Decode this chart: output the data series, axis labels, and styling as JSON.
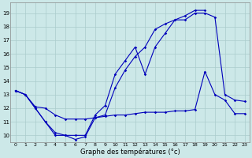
{
  "xlabel": "Graphe des températures (°c)",
  "bg_color": "#cce8e8",
  "grid_color": "#aacccc",
  "line_color": "#0000bb",
  "xlim": [
    -0.5,
    23.5
  ],
  "ylim": [
    9.5,
    19.8
  ],
  "xticks": [
    0,
    1,
    2,
    3,
    4,
    5,
    6,
    7,
    8,
    9,
    10,
    11,
    12,
    13,
    14,
    15,
    16,
    17,
    18,
    19,
    20,
    21,
    22,
    23
  ],
  "yticks": [
    10,
    11,
    12,
    13,
    14,
    15,
    16,
    17,
    18,
    19
  ],
  "series1_x": [
    0,
    1,
    2,
    3,
    4,
    5,
    6,
    7,
    8,
    9,
    10,
    11,
    12,
    13,
    14,
    15,
    16,
    17,
    18,
    19,
    20,
    21,
    22,
    23
  ],
  "series1_y": [
    13.3,
    13.0,
    12.0,
    11.0,
    10.0,
    10.0,
    10.0,
    10.0,
    11.5,
    12.2,
    14.5,
    15.5,
    16.5,
    14.5,
    16.5,
    17.5,
    18.5,
    18.5,
    19.0,
    19.0,
    18.7,
    13.0,
    12.6,
    12.5
  ],
  "series2_x": [
    0,
    1,
    2,
    3,
    4,
    5,
    6,
    7,
    8,
    9,
    10,
    11,
    12,
    13,
    14,
    15,
    16,
    17,
    18,
    19,
    20,
    21,
    22,
    23
  ],
  "series2_y": [
    13.3,
    13.0,
    12.0,
    11.0,
    10.2,
    10.0,
    9.7,
    9.9,
    11.3,
    11.5,
    13.5,
    14.8,
    15.8,
    16.5,
    17.8,
    18.2,
    18.5,
    18.8,
    19.2,
    19.2,
    null,
    null,
    null,
    null
  ],
  "series3_x": [
    0,
    1,
    2,
    3,
    4,
    5,
    6,
    7,
    8,
    9,
    10,
    11,
    12,
    13,
    14,
    15,
    16,
    17,
    18,
    19,
    20,
    21,
    22,
    23
  ],
  "series3_y": [
    13.3,
    13.0,
    12.1,
    12.0,
    11.5,
    11.2,
    11.2,
    11.2,
    11.3,
    11.4,
    11.5,
    11.5,
    11.6,
    11.7,
    11.7,
    11.7,
    11.8,
    11.8,
    11.9,
    14.7,
    13.0,
    12.6,
    11.6,
    11.6
  ]
}
